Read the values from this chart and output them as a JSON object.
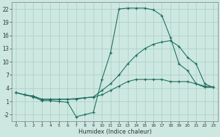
{
  "xlabel": "Humidex (Indice chaleur)",
  "xlim": [
    -0.5,
    23.5
  ],
  "ylim": [
    -3.5,
    23.5
  ],
  "yticks": [
    -2,
    1,
    4,
    7,
    10,
    13,
    16,
    19,
    22
  ],
  "xticks": [
    0,
    1,
    2,
    3,
    4,
    5,
    6,
    7,
    8,
    9,
    10,
    11,
    12,
    13,
    14,
    15,
    16,
    17,
    18,
    19,
    20,
    21,
    22,
    23
  ],
  "bg_color": "#cce8e0",
  "grid_color": "#b0cfc8",
  "line_color": "#1a6b5e",
  "line1_x": [
    0,
    1,
    2,
    3,
    4,
    5,
    6,
    7,
    8,
    9,
    10,
    11,
    12,
    13,
    14,
    15,
    16,
    17,
    18,
    19,
    20,
    21,
    22,
    23
  ],
  "line1_y": [
    3,
    2.5,
    2,
    1.2,
    1.2,
    1.0,
    0.8,
    -2.5,
    -2.0,
    -1.5,
    6,
    12,
    22,
    22.2,
    22.2,
    22.2,
    21.8,
    20.5,
    15.5,
    9.5,
    8.0,
    5.0,
    4.2,
    4.2
  ],
  "line2_x": [
    0,
    1,
    2,
    3,
    4,
    5,
    6,
    7,
    8,
    9,
    10,
    11,
    12,
    13,
    14,
    15,
    16,
    17,
    18,
    19,
    20,
    21,
    22,
    23
  ],
  "line2_y": [
    3.0,
    2.5,
    2.2,
    1.5,
    1.5,
    1.5,
    1.5,
    1.5,
    1.8,
    2.0,
    2.5,
    3.5,
    4.5,
    5.5,
    6.0,
    6.0,
    6.0,
    6.0,
    5.5,
    5.5,
    5.5,
    5.0,
    4.5,
    4.2
  ],
  "line3_x": [
    0,
    1,
    2,
    3,
    4,
    5,
    6,
    9,
    10,
    11,
    12,
    13,
    14,
    15,
    16,
    17,
    18,
    19,
    20,
    21,
    22,
    23
  ],
  "line3_y": [
    3.0,
    2.5,
    2.2,
    1.5,
    1.5,
    1.5,
    1.5,
    2.0,
    3.5,
    5.0,
    7.0,
    9.5,
    11.5,
    13.0,
    14.0,
    14.5,
    14.8,
    13.5,
    11.0,
    9.5,
    5.0,
    4.2
  ]
}
